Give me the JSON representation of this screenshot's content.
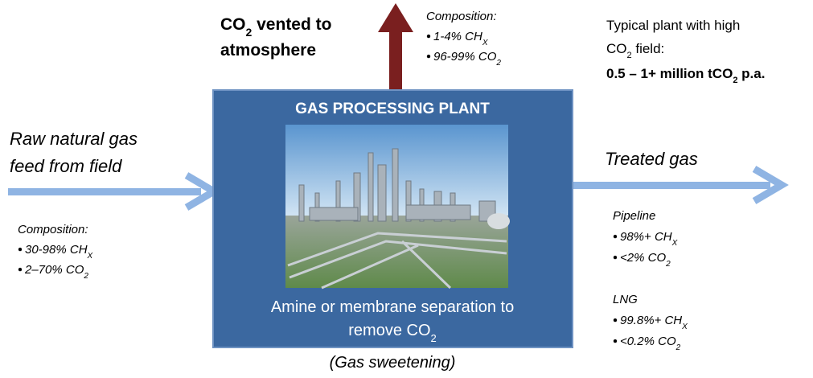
{
  "vented": {
    "lines": [
      [
        "CO",
        "2",
        " vented to"
      ],
      [
        "atmosphere"
      ]
    ]
  },
  "top_composition": {
    "heading": "Composition:",
    "bullets": [
      [
        "1-4% CH",
        "X"
      ],
      [
        "96-99% CO",
        "2"
      ]
    ]
  },
  "typical": {
    "lines": [
      [
        "Typical plant with high"
      ],
      [
        "CO",
        "2",
        " field:"
      ]
    ],
    "highlight": [
      "0.5 – 1+ million tCO",
      "2",
      " p.a."
    ]
  },
  "plant": {
    "title": "GAS PROCESSING PLANT",
    "caption": [
      [
        "Amine or membrane separation to"
      ],
      [
        "remove CO",
        "2"
      ]
    ],
    "note": "(Gas sweetening)"
  },
  "feed": {
    "lines": [
      [
        "Raw natural gas"
      ],
      [
        "feed from field"
      ]
    ],
    "composition": {
      "heading": "Composition:",
      "bullets": [
        [
          "30-98% CH",
          "X"
        ],
        [
          "2–70% CO",
          "2"
        ]
      ]
    }
  },
  "treated": {
    "label": "Treated gas",
    "pipeline": {
      "heading": "Pipeline",
      "bullets": [
        [
          "98%+ CH",
          "X"
        ],
        [
          "<2% CO",
          "2"
        ]
      ]
    },
    "lng": {
      "heading": "LNG",
      "bullets": [
        [
          "99.8%+ CH",
          "X"
        ],
        [
          "<0.2% CO",
          "2"
        ]
      ]
    }
  }
}
